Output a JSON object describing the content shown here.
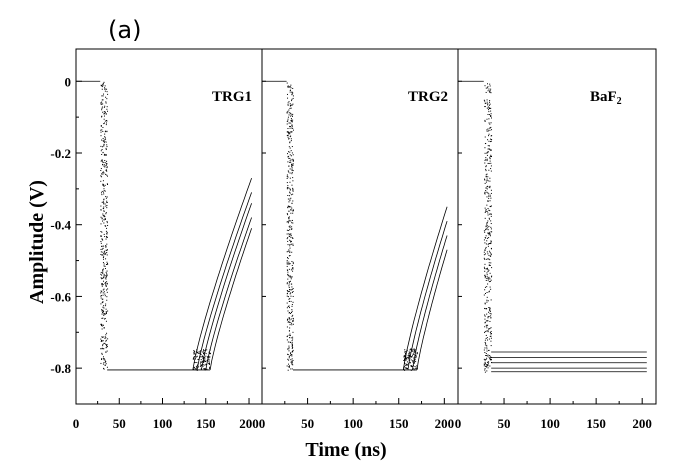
{
  "panel_label": "(a)",
  "chart_data": {
    "type": "line",
    "xlabel": "Time (ns)",
    "ylabel": "Amplitude (V)",
    "xlim": [
      0,
      215
    ],
    "ylim": [
      -0.9,
      0.09
    ],
    "x_ticks": [
      0,
      50,
      100,
      150,
      200
    ],
    "y_ticks": [
      {
        "value": 0,
        "label": "0"
      },
      {
        "value": -0.2,
        "label": "-0.2"
      },
      {
        "value": -0.4,
        "label": "-0.4"
      },
      {
        "value": -0.6,
        "label": "-0.6"
      },
      {
        "value": -0.8,
        "label": "-0.8"
      }
    ],
    "panels": [
      {
        "name": "TRG1",
        "baseline": 0.0,
        "fall_start": 28,
        "fall_end": 36,
        "bottom_level": -0.805,
        "recovery_starts": [
          135,
          140,
          145,
          150,
          155
        ],
        "end_values": [
          -0.27,
          -0.31,
          -0.34,
          -0.38,
          -0.41
        ],
        "end_time": 203
      },
      {
        "name": "TRG2",
        "baseline": 0.0,
        "fall_start": 27,
        "fall_end": 34,
        "bottom_level": -0.805,
        "recovery_starts": [
          155,
          160,
          165,
          170
        ],
        "end_values": [
          -0.35,
          -0.39,
          -0.43,
          -0.47
        ],
        "end_time": 203
      },
      {
        "name": "BaF",
        "name_subscript": "2",
        "baseline": 0.0,
        "fall_start": 28,
        "fall_end": 36,
        "levels": [
          -0.755,
          -0.77,
          -0.785,
          -0.8,
          -0.81
        ],
        "end_time": 205
      }
    ]
  }
}
